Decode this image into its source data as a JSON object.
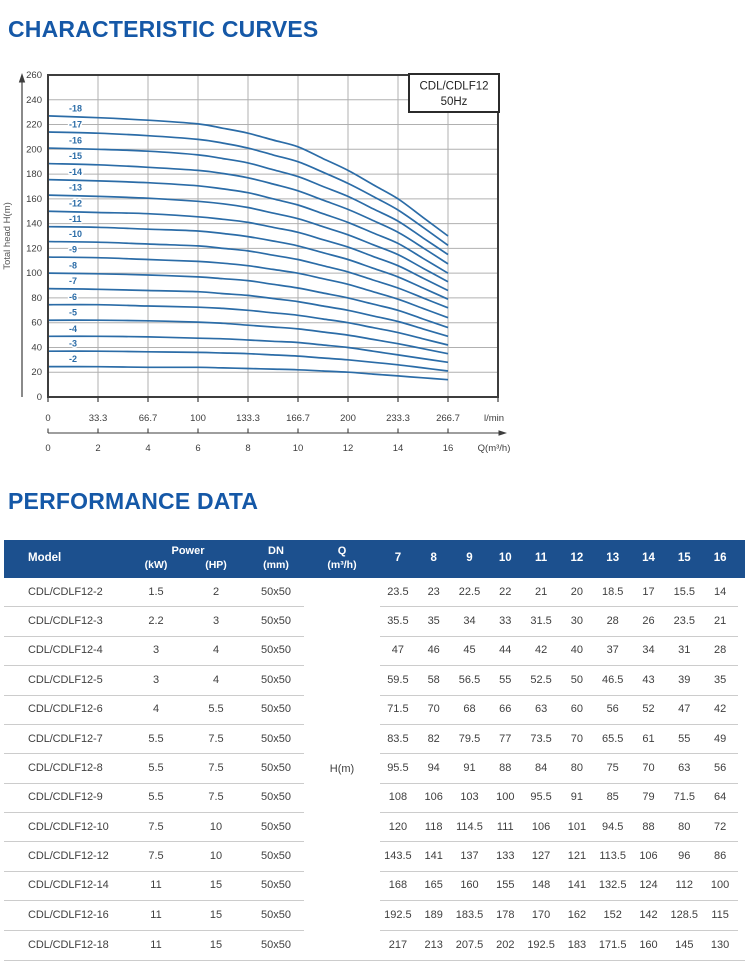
{
  "colors": {
    "heading_blue": "#1558a7",
    "table_header_bg": "#1c508e",
    "curve_blue": "#2b6ca7",
    "grid_gray": "#b0b0b0",
    "plot_border": "#3d3d3d",
    "row_separator": "#cccccc",
    "body_text": "#3f3f3f"
  },
  "section_curves": {
    "title": "CHARACTERISTIC CURVES"
  },
  "section_performance": {
    "title": "PERFORMANCE DATA"
  },
  "chart_data": {
    "type": "line",
    "box_label": {
      "line1": "CDL/CDLF12",
      "line2": "50Hz"
    },
    "ylabel": "Total head  H(m)",
    "ylim": [
      0,
      260
    ],
    "y_ticks": [
      0,
      20,
      40,
      60,
      80,
      100,
      120,
      140,
      160,
      180,
      200,
      220,
      240,
      260
    ],
    "x_q": [
      0,
      2,
      4,
      6,
      7,
      8,
      9,
      10,
      11,
      12,
      13,
      14,
      15,
      16
    ],
    "xlim_q": [
      0,
      18
    ],
    "grid": "on",
    "axis_lmin": {
      "labels": [
        "0",
        "33.3",
        "66.7",
        "100",
        "133.3",
        "166.7",
        "200",
        "233.3",
        "266.7"
      ],
      "unit": "l/min"
    },
    "axis_q": {
      "labels": [
        "0",
        "2",
        "4",
        "6",
        "8",
        "10",
        "12",
        "14",
        "16"
      ],
      "unit": "Q(m³/h)"
    },
    "series": [
      {
        "label": "-18",
        "values": [
          227,
          225.5,
          223.5,
          220.5,
          217,
          213,
          207.5,
          202,
          192.5,
          183,
          171.5,
          160,
          145,
          130
        ]
      },
      {
        "label": "-17",
        "values": [
          214,
          213,
          211,
          208,
          205,
          201,
          195.5,
          190,
          181.5,
          172.5,
          162,
          151,
          137,
          122.5
        ]
      },
      {
        "label": "-16",
        "values": [
          201,
          200,
          198.5,
          195.5,
          192.5,
          189,
          183.5,
          178,
          170,
          162,
          152,
          142,
          128.5,
          115
        ]
      },
      {
        "label": "-15",
        "values": [
          188.5,
          187.5,
          185.5,
          183,
          180.5,
          177,
          172,
          166.5,
          159,
          151.5,
          142.5,
          133,
          120.5,
          107.5
        ]
      },
      {
        "label": "-14",
        "values": [
          175.5,
          174.5,
          173,
          170.5,
          168,
          165,
          160,
          155,
          148,
          141,
          132.5,
          124,
          112,
          100
        ]
      },
      {
        "label": "-13",
        "values": [
          163,
          162,
          160.5,
          158,
          156,
          153,
          148.5,
          144,
          137.5,
          131,
          123,
          115,
          104,
          93
        ]
      },
      {
        "label": "-12",
        "values": [
          150,
          149,
          148,
          145.5,
          143.5,
          141,
          137,
          133,
          127,
          121,
          113.5,
          106,
          96,
          86
        ]
      },
      {
        "label": "-11",
        "values": [
          137.5,
          137,
          135.5,
          134,
          132,
          129.5,
          126,
          122,
          116.5,
          111,
          104,
          97,
          88,
          79
        ]
      },
      {
        "label": "-10",
        "values": [
          125.5,
          125,
          123.5,
          122,
          120,
          118,
          114.5,
          111,
          106,
          101,
          94.5,
          88,
          80,
          72
        ]
      },
      {
        "label": "-9",
        "values": [
          113,
          112.5,
          111,
          109.5,
          108,
          106,
          103,
          100,
          95.5,
          91,
          85,
          79,
          71.5,
          64
        ]
      },
      {
        "label": "-8",
        "values": [
          100,
          99.5,
          98.5,
          97,
          95.5,
          94,
          91,
          88,
          84,
          80,
          75,
          70,
          63,
          56
        ]
      },
      {
        "label": "-7",
        "values": [
          87.5,
          87,
          86,
          85,
          83.5,
          82,
          79.5,
          77,
          73.5,
          70,
          65.5,
          61,
          55,
          49
        ]
      },
      {
        "label": "-6",
        "values": [
          74.5,
          74.5,
          73.5,
          72.5,
          71.5,
          70,
          68,
          66,
          63,
          60,
          56,
          52,
          47,
          42
        ]
      },
      {
        "label": "-5",
        "values": [
          62,
          62,
          61.5,
          60.5,
          59.5,
          58,
          56.5,
          55,
          52.5,
          50,
          46.5,
          43,
          39,
          35
        ]
      },
      {
        "label": "-4",
        "values": [
          49,
          49,
          48.5,
          47.5,
          47,
          46,
          45,
          44,
          42,
          40,
          37,
          34,
          31,
          28
        ]
      },
      {
        "label": "-3",
        "values": [
          37,
          37,
          36.5,
          36,
          35.5,
          35,
          34,
          33,
          31.5,
          30,
          28,
          26,
          23.5,
          21
        ]
      },
      {
        "label": "-2",
        "values": [
          24.5,
          24.5,
          24,
          24,
          23.5,
          23,
          22.5,
          22,
          21,
          20,
          18.5,
          17,
          15.5,
          14
        ]
      }
    ]
  },
  "table": {
    "columns": {
      "model": "Model",
      "power": "Power",
      "kw": "(kW)",
      "hp": "(HP)",
      "dn_line1": "DN",
      "dn_line2": "(mm)",
      "q_line1": "Q",
      "q_line2": "(m³/h)"
    },
    "flow_cols": [
      "7",
      "8",
      "9",
      "10",
      "11",
      "12",
      "13",
      "14",
      "15",
      "16"
    ],
    "head_unit": "H(m)",
    "rows": [
      {
        "model": "CDL/CDLF12-2",
        "kw": "1.5",
        "hp": "2",
        "dn": "50x50",
        "heads": [
          "23.5",
          "23",
          "22.5",
          "22",
          "21",
          "20",
          "18.5",
          "17",
          "15.5",
          "14"
        ]
      },
      {
        "model": "CDL/CDLF12-3",
        "kw": "2.2",
        "hp": "3",
        "dn": "50x50",
        "heads": [
          "35.5",
          "35",
          "34",
          "33",
          "31.5",
          "30",
          "28",
          "26",
          "23.5",
          "21"
        ]
      },
      {
        "model": "CDL/CDLF12-4",
        "kw": "3",
        "hp": "4",
        "dn": "50x50",
        "heads": [
          "47",
          "46",
          "45",
          "44",
          "42",
          "40",
          "37",
          "34",
          "31",
          "28"
        ]
      },
      {
        "model": "CDL/CDLF12-5",
        "kw": "3",
        "hp": "4",
        "dn": "50x50",
        "heads": [
          "59.5",
          "58",
          "56.5",
          "55",
          "52.5",
          "50",
          "46.5",
          "43",
          "39",
          "35"
        ]
      },
      {
        "model": "CDL/CDLF12-6",
        "kw": "4",
        "hp": "5.5",
        "dn": "50x50",
        "heads": [
          "71.5",
          "70",
          "68",
          "66",
          "63",
          "60",
          "56",
          "52",
          "47",
          "42"
        ]
      },
      {
        "model": "CDL/CDLF12-7",
        "kw": "5.5",
        "hp": "7.5",
        "dn": "50x50",
        "heads": [
          "83.5",
          "82",
          "79.5",
          "77",
          "73.5",
          "70",
          "65.5",
          "61",
          "55",
          "49"
        ]
      },
      {
        "model": "CDL/CDLF12-8",
        "kw": "5.5",
        "hp": "7.5",
        "dn": "50x50",
        "heads": [
          "95.5",
          "94",
          "91",
          "88",
          "84",
          "80",
          "75",
          "70",
          "63",
          "56"
        ]
      },
      {
        "model": "CDL/CDLF12-9",
        "kw": "5.5",
        "hp": "7.5",
        "dn": "50x50",
        "heads": [
          "108",
          "106",
          "103",
          "100",
          "95.5",
          "91",
          "85",
          "79",
          "71.5",
          "64"
        ]
      },
      {
        "model": "CDL/CDLF12-10",
        "kw": "7.5",
        "hp": "10",
        "dn": "50x50",
        "heads": [
          "120",
          "118",
          "114.5",
          "111",
          "106",
          "101",
          "94.5",
          "88",
          "80",
          "72"
        ]
      },
      {
        "model": "CDL/CDLF12-12",
        "kw": "7.5",
        "hp": "10",
        "dn": "50x50",
        "heads": [
          "143.5",
          "141",
          "137",
          "133",
          "127",
          "121",
          "113.5",
          "106",
          "96",
          "86"
        ]
      },
      {
        "model": "CDL/CDLF12-14",
        "kw": "11",
        "hp": "15",
        "dn": "50x50",
        "heads": [
          "168",
          "165",
          "160",
          "155",
          "148",
          "141",
          "132.5",
          "124",
          "112",
          "100"
        ]
      },
      {
        "model": "CDL/CDLF12-16",
        "kw": "11",
        "hp": "15",
        "dn": "50x50",
        "heads": [
          "192.5",
          "189",
          "183.5",
          "178",
          "170",
          "162",
          "152",
          "142",
          "128.5",
          "115"
        ]
      },
      {
        "model": "CDL/CDLF12-18",
        "kw": "11",
        "hp": "15",
        "dn": "50x50",
        "heads": [
          "217",
          "213",
          "207.5",
          "202",
          "192.5",
          "183",
          "171.5",
          "160",
          "145",
          "130"
        ]
      }
    ]
  }
}
